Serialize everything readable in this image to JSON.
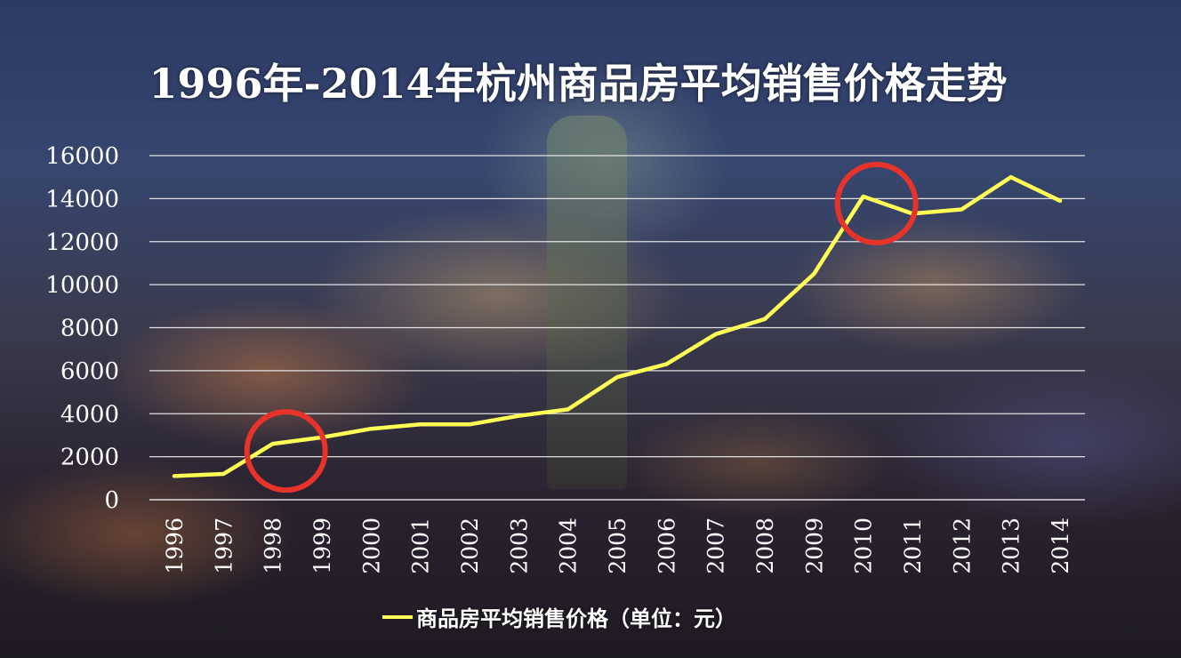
{
  "colors": {
    "line": "#ffff55",
    "circle": "#e8332b",
    "grid": "#f2f2f2",
    "text": "#ffffff"
  },
  "chart_data": {
    "type": "line",
    "title": "1996年-2014年杭州商品房平均销售价格走势",
    "categories": [
      "1996",
      "1997",
      "1998",
      "1999",
      "2000",
      "2001",
      "2002",
      "2003",
      "2004",
      "2005",
      "2006",
      "2007",
      "2008",
      "2009",
      "2010",
      "2011",
      "2012",
      "2013",
      "2014"
    ],
    "series": [
      {
        "name": "商品房平均销售价格（单位：元）",
        "values": [
          1100,
          1200,
          2600,
          2900,
          3300,
          3500,
          3500,
          3900,
          4200,
          5700,
          6300,
          7700,
          8400,
          10500,
          14100,
          13300,
          13500,
          15000,
          13900
        ]
      }
    ],
    "yticks": [
      "0",
      "2000",
      "4000",
      "6000",
      "8000",
      "10000",
      "12000",
      "14000",
      "16000"
    ],
    "ylim": [
      0,
      16000
    ],
    "grid": true,
    "legend_position": "bottom",
    "highlighted_categories": [
      "1998",
      "2010"
    ]
  }
}
